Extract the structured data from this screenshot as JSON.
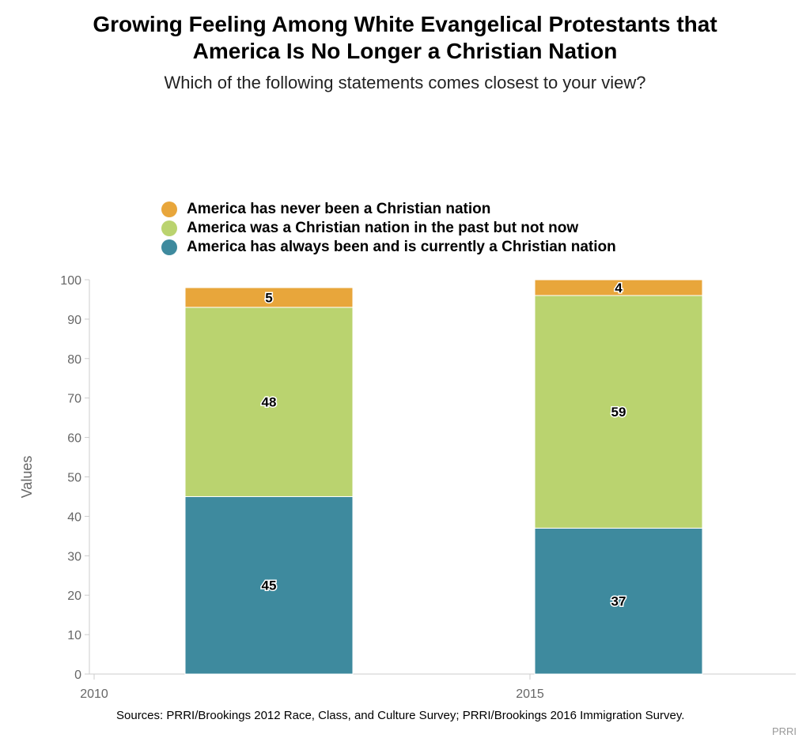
{
  "header": {
    "title_line1": "Growing Feeling Among White Evangelical Protestants that",
    "title_line2": "America Is No Longer a Christian Nation",
    "subtitle": "Which of the following statements comes closest to your view?"
  },
  "chart_data": {
    "type": "bar",
    "stacked": true,
    "categories": [
      "2010",
      "2015"
    ],
    "series": [
      {
        "name": "America has always been and is currently a Christian nation",
        "values": [
          45,
          37
        ],
        "color": "#3e8a9e"
      },
      {
        "name": "America was a Christian nation in the past but not now",
        "values": [
          48,
          59
        ],
        "color": "#bad36f"
      },
      {
        "name": "America has never been a Christian nation",
        "values": [
          5,
          4
        ],
        "color": "#e8a63b"
      }
    ],
    "legend_order": [
      2,
      1,
      0
    ],
    "ylabel": "Values",
    "ylim": [
      0,
      100
    ],
    "yticks": [
      0,
      10,
      20,
      30,
      40,
      50,
      60,
      70,
      80,
      90,
      100
    ],
    "grid": false,
    "legend_position": "top-left"
  },
  "footer": {
    "source": "Sources: PRRI/Brookings 2012 Race, Class, and Culture Survey; PRRI/Brookings 2016 Immigration Survey.",
    "credit": "PRRI"
  }
}
